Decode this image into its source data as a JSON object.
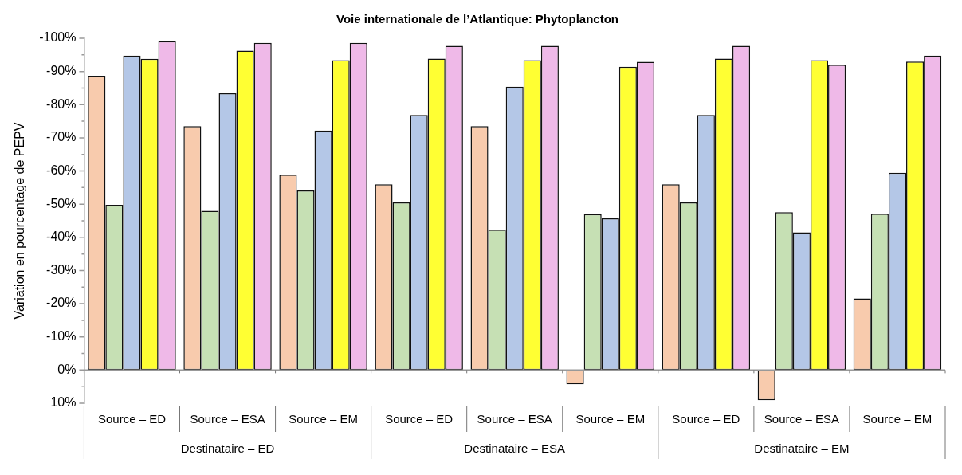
{
  "chart_data": {
    "type": "bar",
    "title": "Voie internationale de l’Atlantique: Phytoplancton",
    "ylabel": "Variation en pourcentage de PEPV",
    "categories": [
      "Source – ED",
      "Source – ESA",
      "Source – EM",
      "Source – ED",
      "Source – ESA",
      "Source – EM",
      "Source – ED",
      "Source – ESA",
      "Source – EM"
    ],
    "annotations": [
      "Destinataire – ED",
      "Destinataire – ESA",
      "Destinataire – EM"
    ],
    "series": [
      {
        "color": "#f8cbad",
        "values": [
          -88.7,
          -73.5,
          -58.9,
          -56,
          -73.5,
          4.3,
          -56,
          9.1,
          -21.6
        ]
      },
      {
        "color": "#c6e0b4",
        "values": [
          -49.8,
          -48,
          -54.1,
          -50.5,
          -42.3,
          -47,
          -50.5,
          -47.6,
          -47.1
        ]
      },
      {
        "color": "#b4c7e7",
        "values": [
          -94.8,
          -83.4,
          -72.2,
          -76.9,
          -85.4,
          -45.7,
          -76.9,
          -41.5,
          -59.5
        ]
      },
      {
        "color": "#ffff33",
        "values": [
          -93.8,
          -96.3,
          -93.4,
          -93.9,
          -93.4,
          -91.4,
          -93.9,
          -93.4,
          -93
        ]
      },
      {
        "color": "#efb9e8",
        "values": [
          -99.1,
          -98.6,
          -98.6,
          -97.7,
          -97.7,
          -92.9,
          -97.7,
          -92,
          -94.8
        ]
      }
    ],
    "ylim": [
      10,
      -100
    ],
    "yticks": [
      {
        "value": 10,
        "label": "10%"
      },
      {
        "value": 0,
        "label": "0%"
      },
      {
        "value": -10,
        "label": "-10%"
      },
      {
        "value": -20,
        "label": "-20%"
      },
      {
        "value": -30,
        "label": "-30%"
      },
      {
        "value": -40,
        "label": "-40%"
      },
      {
        "value": -50,
        "label": "-50%"
      },
      {
        "value": -60,
        "label": "-60%"
      },
      {
        "value": -70,
        "label": "-70%"
      },
      {
        "value": -80,
        "label": "-80%"
      },
      {
        "value": -90,
        "label": "-90%"
      },
      {
        "value": -100,
        "label": "-100%"
      }
    ],
    "legend": false
  }
}
